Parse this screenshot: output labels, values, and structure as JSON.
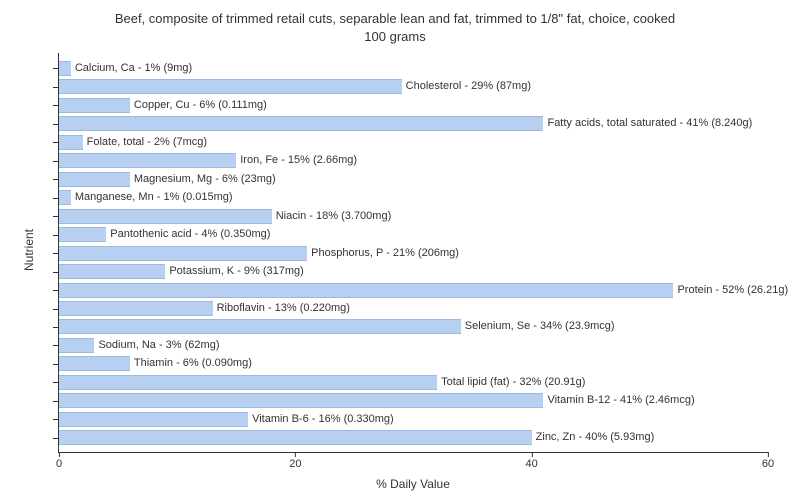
{
  "chart": {
    "type": "bar-horizontal",
    "title_line1": "Beef, composite of trimmed retail cuts, separable lean and fat, trimmed to 1/8\" fat, choice, cooked",
    "title_line2": "100 grams",
    "xlabel": "% Daily Value",
    "ylabel": "Nutrient",
    "xlim_max": 60,
    "xticks": [
      0,
      20,
      40,
      60
    ],
    "bar_color": "#b7cff0",
    "bar_border": "#9db9dd",
    "background_color": "#ffffff",
    "axis_color": "#333333",
    "title_fontsize": 13,
    "tick_fontsize": 11,
    "label_fontsize": 12,
    "bar_label_fontsize": 11,
    "rows": [
      {
        "name": "Calcium, Ca",
        "pct": 1,
        "amount": "9mg",
        "label": "Calcium, Ca - 1% (9mg)"
      },
      {
        "name": "Cholesterol",
        "pct": 29,
        "amount": "87mg",
        "label": "Cholesterol - 29% (87mg)"
      },
      {
        "name": "Copper, Cu",
        "pct": 6,
        "amount": "0.111mg",
        "label": "Copper, Cu - 6% (0.111mg)"
      },
      {
        "name": "Fatty acids, total saturated",
        "pct": 41,
        "amount": "8.240g",
        "label": "Fatty acids, total saturated - 41% (8.240g)"
      },
      {
        "name": "Folate, total",
        "pct": 2,
        "amount": "7mcg",
        "label": "Folate, total - 2% (7mcg)"
      },
      {
        "name": "Iron, Fe",
        "pct": 15,
        "amount": "2.66mg",
        "label": "Iron, Fe - 15% (2.66mg)"
      },
      {
        "name": "Magnesium, Mg",
        "pct": 6,
        "amount": "23mg",
        "label": "Magnesium, Mg - 6% (23mg)"
      },
      {
        "name": "Manganese, Mn",
        "pct": 1,
        "amount": "0.015mg",
        "label": "Manganese, Mn - 1% (0.015mg)"
      },
      {
        "name": "Niacin",
        "pct": 18,
        "amount": "3.700mg",
        "label": "Niacin - 18% (3.700mg)"
      },
      {
        "name": "Pantothenic acid",
        "pct": 4,
        "amount": "0.350mg",
        "label": "Pantothenic acid - 4% (0.350mg)"
      },
      {
        "name": "Phosphorus, P",
        "pct": 21,
        "amount": "206mg",
        "label": "Phosphorus, P - 21% (206mg)"
      },
      {
        "name": "Potassium, K",
        "pct": 9,
        "amount": "317mg",
        "label": "Potassium, K - 9% (317mg)"
      },
      {
        "name": "Protein",
        "pct": 52,
        "amount": "26.21g",
        "label": "Protein - 52% (26.21g)"
      },
      {
        "name": "Riboflavin",
        "pct": 13,
        "amount": "0.220mg",
        "label": "Riboflavin - 13% (0.220mg)"
      },
      {
        "name": "Selenium, Se",
        "pct": 34,
        "amount": "23.9mcg",
        "label": "Selenium, Se - 34% (23.9mcg)"
      },
      {
        "name": "Sodium, Na",
        "pct": 3,
        "amount": "62mg",
        "label": "Sodium, Na - 3% (62mg)"
      },
      {
        "name": "Thiamin",
        "pct": 6,
        "amount": "0.090mg",
        "label": "Thiamin - 6% (0.090mg)"
      },
      {
        "name": "Total lipid (fat)",
        "pct": 32,
        "amount": "20.91g",
        "label": "Total lipid (fat) - 32% (20.91g)"
      },
      {
        "name": "Vitamin B-12",
        "pct": 41,
        "amount": "2.46mcg",
        "label": "Vitamin B-12 - 41% (2.46mcg)"
      },
      {
        "name": "Vitamin B-6",
        "pct": 16,
        "amount": "0.330mg",
        "label": "Vitamin B-6 - 16% (0.330mg)"
      },
      {
        "name": "Zinc, Zn",
        "pct": 40,
        "amount": "5.93mg",
        "label": "Zinc, Zn - 40% (5.93mg)"
      }
    ]
  }
}
